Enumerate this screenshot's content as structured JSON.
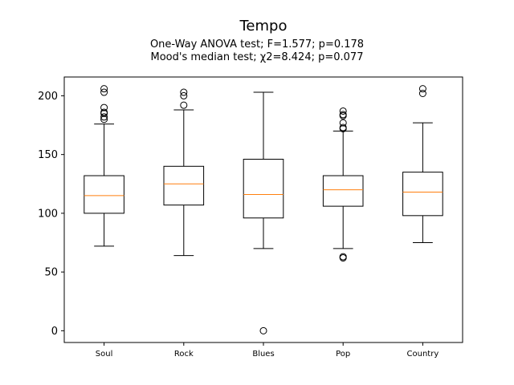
{
  "chart_data": {
    "type": "box",
    "title": "Tempo",
    "subtitle_lines": [
      "One-Way ANOVA test; F=1.577; p=0.178",
      "Mood's median test; χ2=8.424; p=0.077"
    ],
    "xlabel": "",
    "ylabel": "",
    "ylim": [
      -10,
      216
    ],
    "yticks": [
      0,
      50,
      100,
      150,
      200
    ],
    "grid": false,
    "colors": {
      "box": "#000000",
      "median": "#ff7f0e",
      "flier": "#000000"
    },
    "categories": [
      "Soul",
      "Rock",
      "Blues",
      "Pop",
      "Country"
    ],
    "boxes": [
      {
        "category": "Soul",
        "whisker_low": 72,
        "q1": 100,
        "median": 115,
        "q3": 132,
        "whisker_high": 176,
        "outliers": [
          180,
          182,
          185,
          186,
          190,
          203,
          206
        ]
      },
      {
        "category": "Rock",
        "whisker_low": 64,
        "q1": 107,
        "median": 125,
        "q3": 140,
        "whisker_high": 188,
        "outliers": [
          192,
          200,
          203
        ]
      },
      {
        "category": "Blues",
        "whisker_low": 70,
        "q1": 96,
        "median": 116,
        "q3": 146,
        "whisker_high": 203,
        "outliers": [
          0
        ]
      },
      {
        "category": "Pop",
        "whisker_low": 70,
        "q1": 106,
        "median": 120,
        "q3": 132,
        "whisker_high": 170,
        "outliers": [
          62,
          63,
          172,
          173,
          177,
          183,
          184,
          187
        ]
      },
      {
        "category": "Country",
        "whisker_low": 75,
        "q1": 98,
        "median": 118,
        "q3": 135,
        "whisker_high": 177,
        "outliers": [
          202,
          206
        ]
      }
    ]
  }
}
